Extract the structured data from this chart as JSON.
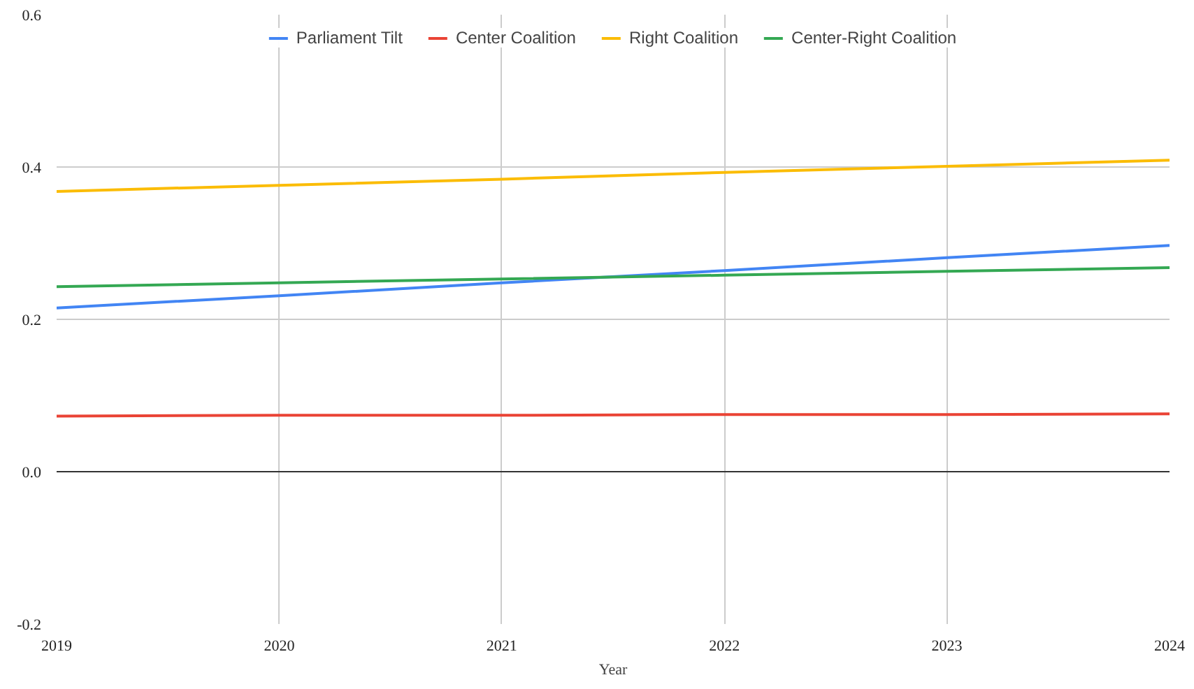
{
  "chart_data": {
    "type": "line",
    "xlabel": "Year",
    "x": [
      2019,
      2020,
      2021,
      2022,
      2023,
      2024
    ],
    "series": [
      {
        "name": "Parliament Tilt",
        "color": "#4285f4",
        "values": [
          0.215,
          0.231,
          0.248,
          0.264,
          0.281,
          0.297
        ]
      },
      {
        "name": "Center Coalition",
        "color": "#ea4335",
        "values": [
          0.073,
          0.074,
          0.074,
          0.075,
          0.075,
          0.076
        ]
      },
      {
        "name": "Right Coalition",
        "color": "#fbbc04",
        "values": [
          0.368,
          0.376,
          0.384,
          0.393,
          0.401,
          0.409
        ]
      },
      {
        "name": "Center-Right Coalition",
        "color": "#34a853",
        "values": [
          0.243,
          0.248,
          0.253,
          0.258,
          0.263,
          0.268
        ]
      }
    ],
    "xlim": [
      2019,
      2024
    ],
    "xticks": [
      2019,
      2020,
      2021,
      2022,
      2023,
      2024
    ],
    "ylim": [
      -0.2,
      0.6
    ],
    "yticks": [
      {
        "value": -0.2,
        "label": "-0.2"
      },
      {
        "value": 0,
        "label": "0.0"
      },
      {
        "value": 0.2,
        "label": "0.2"
      },
      {
        "value": 0.4,
        "label": "0.4"
      },
      {
        "value": 0.6,
        "label": "0.6"
      }
    ],
    "ref_lines": [
      {
        "axis": "y",
        "value": 0,
        "label": null,
        "color": "#333333"
      }
    ],
    "grid": true,
    "legend": "top",
    "marker": "none",
    "line_style": "solid"
  }
}
